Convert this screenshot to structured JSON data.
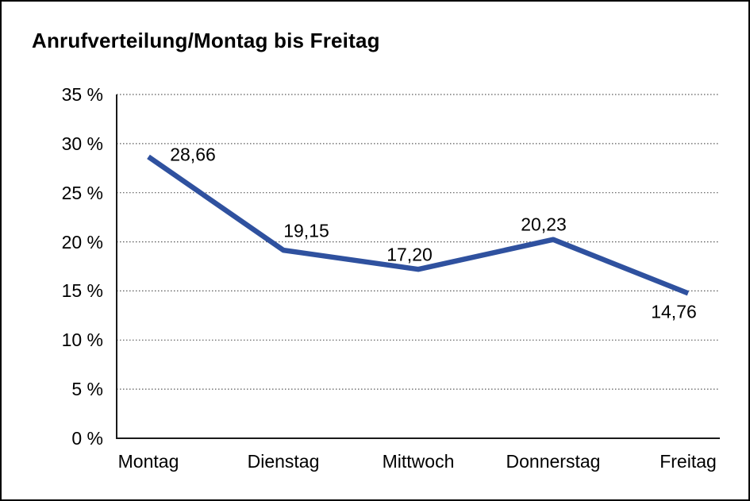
{
  "frame": {
    "background": "#ffffff",
    "border_color": "#000000"
  },
  "chart_data": {
    "type": "line",
    "title": "Anrufverteilung/Montag bis Freitag",
    "categories": [
      "Montag",
      "Dienstag",
      "Mittwoch",
      "Donnerstag",
      "Freitag"
    ],
    "series": [
      {
        "name": "Anrufverteilung",
        "values": [
          28.66,
          19.15,
          17.2,
          20.23,
          14.76
        ]
      }
    ],
    "point_labels": [
      "28,66",
      "19,15",
      "17,20",
      "20,23",
      "14,76"
    ],
    "y_tick_labels": [
      "35 %",
      "30 %",
      "25 %",
      "20 %",
      "15 %",
      "10 %",
      "5 %",
      "0 %"
    ],
    "y_tick_values": [
      35,
      30,
      25,
      20,
      15,
      10,
      5,
      0
    ],
    "ylim": [
      0,
      35
    ],
    "y_tick_step": 5,
    "xlabel": "",
    "ylabel": "",
    "grid": "horizontal-dotted",
    "legend_position": "none",
    "line_color": "#2F519F",
    "gridline_color": "#5a5a5a",
    "axis_color": "#1a1a1a",
    "text_color": "#000000"
  }
}
